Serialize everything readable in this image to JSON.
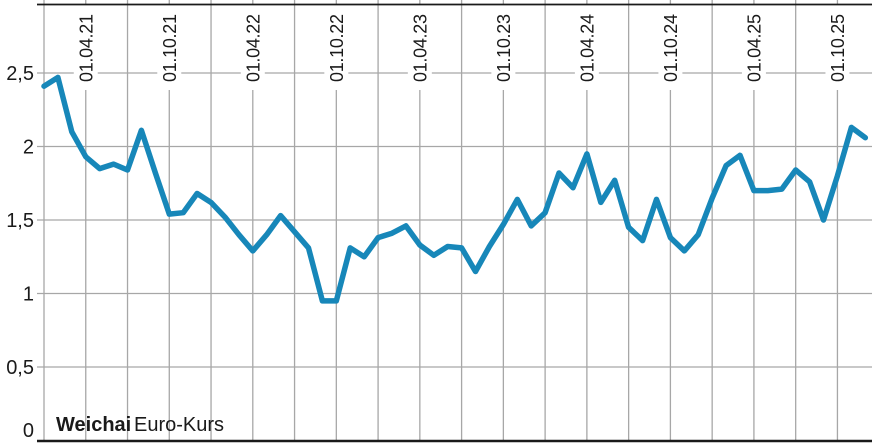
{
  "chart": {
    "legend": {
      "brand": "Weichai",
      "series_label": "Euro-Kurs"
    },
    "colors": {
      "line": "#1787b9",
      "brand_text": "#1787b9",
      "grid": "#a7a7a7",
      "axis": "#1a1a1a",
      "text": "#1a1a1a",
      "background": "#ffffff"
    }
  },
  "chart_data": {
    "type": "line",
    "title": "Weichai Euro-Kurs",
    "x_start": "2021-01",
    "x_interval": "monthly",
    "x_tick_labels": [
      "01.04.21",
      "01.10.21",
      "01.04.22",
      "01.10.22",
      "01.04.23",
      "01.10.23",
      "01.04.24",
      "01.10.24",
      "01.04.25",
      "01.10.25"
    ],
    "y_ticks": [
      0,
      0.5,
      1,
      1.5,
      2,
      2.5
    ],
    "y_tick_labels": [
      "0",
      "0,5",
      "1",
      "1,5",
      "2",
      "2,5"
    ],
    "ylim": [
      0,
      3
    ],
    "grid": true,
    "legend_position": "bottom-left",
    "series": [
      {
        "name": "Weichai Euro-Kurs",
        "values": [
          2.41,
          2.47,
          2.1,
          1.93,
          1.85,
          1.88,
          1.84,
          2.11,
          1.82,
          1.54,
          1.55,
          1.68,
          1.62,
          1.52,
          1.4,
          1.29,
          1.4,
          1.53,
          1.42,
          1.31,
          0.95,
          0.95,
          1.31,
          1.25,
          1.38,
          1.41,
          1.46,
          1.33,
          1.26,
          1.32,
          1.31,
          1.15,
          1.32,
          1.47,
          1.64,
          1.46,
          1.55,
          1.82,
          1.72,
          1.95,
          1.62,
          1.77,
          1.45,
          1.36,
          1.64,
          1.38,
          1.29,
          1.4,
          1.65,
          1.87,
          1.94,
          1.7,
          1.7,
          1.71,
          1.84,
          1.76,
          1.5,
          1.8,
          2.13,
          2.06
        ]
      }
    ]
  }
}
